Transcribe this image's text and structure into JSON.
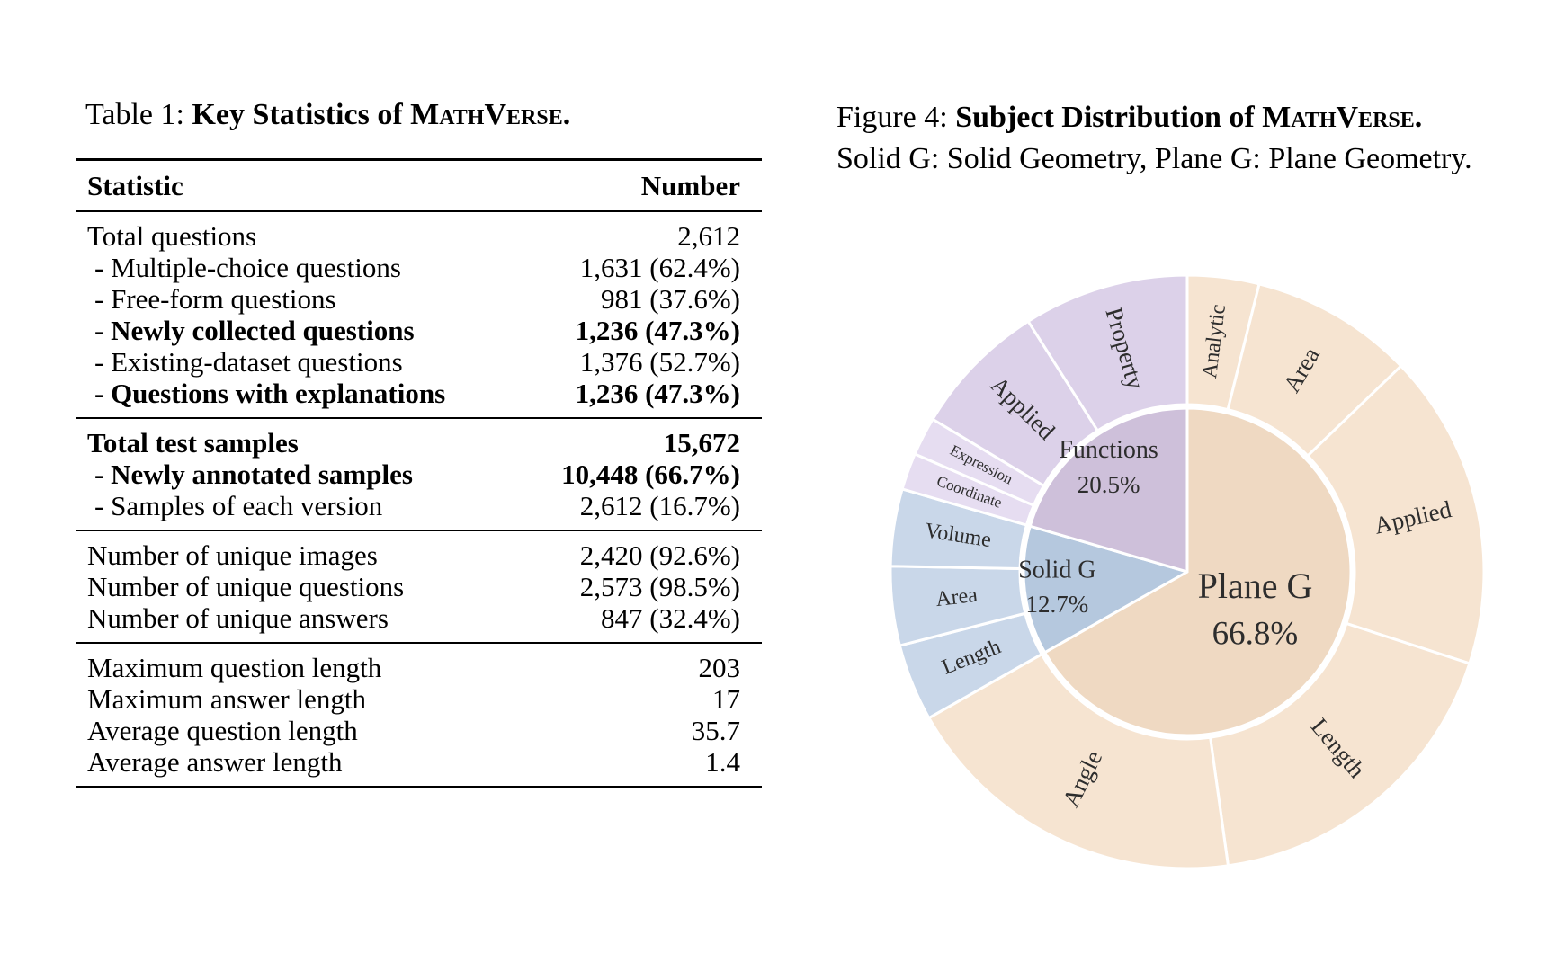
{
  "table": {
    "title": {
      "prefix": "Table 1: ",
      "bold": "Key Statistics of ",
      "smallcaps": "MathVerse."
    },
    "header": {
      "statistic": "Statistic",
      "number": "Number"
    },
    "groups": [
      {
        "rows": [
          {
            "label": "Total questions",
            "value": "2,612",
            "bold": false,
            "indent": false
          },
          {
            "label": "- Multiple-choice questions",
            "value": "1,631 (62.4%)",
            "bold": false,
            "indent": true
          },
          {
            "label": "- Free-form questions",
            "value": "981 (37.6%)",
            "bold": false,
            "indent": true
          },
          {
            "label": "- Newly collected questions",
            "value": "1,236 (47.3%)",
            "bold": true,
            "indent": true
          },
          {
            "label": "- Existing-dataset questions",
            "value": "1,376 (52.7%)",
            "bold": false,
            "indent": true
          },
          {
            "label": "- Questions with explanations",
            "value": "1,236 (47.3%)",
            "bold": true,
            "indent": true
          }
        ]
      },
      {
        "rows": [
          {
            "label": "Total test samples",
            "value": "15,672",
            "bold": true,
            "indent": false
          },
          {
            "label": "- Newly annotated samples",
            "value": "10,448 (66.7%)",
            "bold": true,
            "indent": true
          },
          {
            "label": "- Samples of each version",
            "value": "2,612 (16.7%)",
            "bold": false,
            "indent": true
          }
        ]
      },
      {
        "rows": [
          {
            "label": "Number of unique images",
            "value": "2,420 (92.6%)",
            "bold": false,
            "indent": false
          },
          {
            "label": "Number of unique questions",
            "value": "2,573 (98.5%)",
            "bold": false,
            "indent": false
          },
          {
            "label": "Number of unique answers",
            "value": "847 (32.4%)",
            "bold": false,
            "indent": false
          }
        ]
      },
      {
        "rows": [
          {
            "label": "Maximum question length",
            "value": "203",
            "bold": false,
            "indent": false
          },
          {
            "label": "Maximum answer length",
            "value": "17",
            "bold": false,
            "indent": false
          },
          {
            "label": "Average question length",
            "value": "35.7",
            "bold": false,
            "indent": false
          },
          {
            "label": "Average answer length",
            "value": "1.4",
            "bold": false,
            "indent": false
          }
        ]
      }
    ]
  },
  "figure": {
    "caption": {
      "prefix": "Figure 4: ",
      "bold": "Subject Distribution of ",
      "smallcaps": "MathVerse.",
      "rest": " Solid G: Solid Geometry, Plane G: Plane Geometry."
    }
  },
  "chart_data": {
    "type": "sunburst",
    "title": "Subject Distribution of MathVerse",
    "units": "percent",
    "legend": "none",
    "note": "Inner ring percentages are labeled; outer-ring child spans are estimated from arc angles.",
    "inner": [
      {
        "label": "Plane G",
        "pct": 66.8,
        "pct_label": "66.8%",
        "color": "#efd9c2",
        "children": [
          {
            "label": "Analytic",
            "pct": 3.9,
            "color": "#f6e4d1"
          },
          {
            "label": "Area",
            "pct": 8.9,
            "color": "#f6e4d1"
          },
          {
            "label": "Applied",
            "pct": 17.2,
            "color": "#f6e4d1"
          },
          {
            "label": "Length",
            "pct": 17.8,
            "color": "#f6e4d1"
          },
          {
            "label": "Angle",
            "pct": 19.0,
            "color": "#f6e4d1"
          }
        ]
      },
      {
        "label": "Solid G",
        "pct": 12.7,
        "pct_label": "12.7%",
        "color": "#b5c8de",
        "children": [
          {
            "label": "Length",
            "pct": 4.2,
            "color": "#c9d7e9"
          },
          {
            "label": "Area",
            "pct": 4.3,
            "color": "#c9d7e9"
          },
          {
            "label": "Volume",
            "pct": 4.2,
            "color": "#c9d7e9"
          }
        ]
      },
      {
        "label": "Functions",
        "pct": 20.5,
        "pct_label": "20.5%",
        "color": "#cec0da",
        "children": [
          {
            "label": "Coordinate",
            "pct": 2.0,
            "color": "#e6ddf1"
          },
          {
            "label": "Expression",
            "pct": 2.1,
            "color": "#e6ddf1"
          },
          {
            "label": "Applied",
            "pct": 7.4,
            "color": "#dcd1e9"
          },
          {
            "label": "Property",
            "pct": 9.0,
            "color": "#dcd1e9"
          }
        ]
      }
    ],
    "text_color": "#2d2d2d",
    "divider_color": "#ffffff"
  }
}
